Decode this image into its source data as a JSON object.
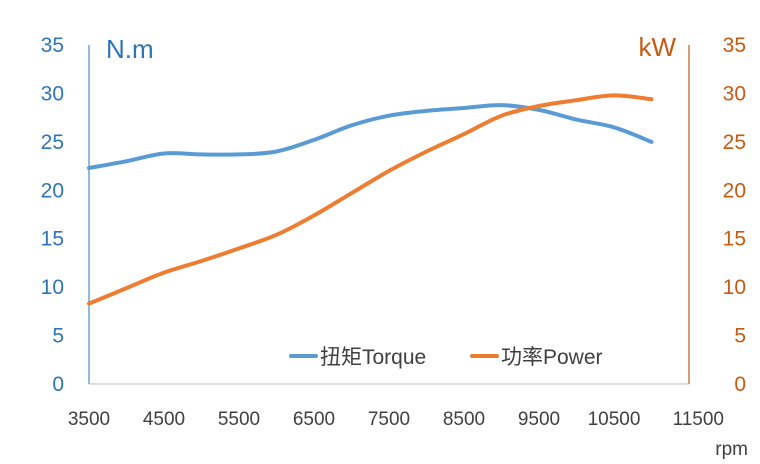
{
  "chart_data": {
    "type": "line",
    "x_unit": "rpm",
    "x_ticks": [
      3500,
      4500,
      5500,
      6500,
      7500,
      8500,
      9500,
      10500,
      11500
    ],
    "xlim": [
      3500,
      11500
    ],
    "y_left": {
      "unit": "N.m",
      "ylim": [
        0,
        35
      ],
      "ticks": [
        0,
        5,
        10,
        15,
        20,
        25,
        30,
        35
      ],
      "color": "#2e75b6"
    },
    "y_right": {
      "unit": "kW",
      "ylim": [
        0,
        35
      ],
      "ticks": [
        0,
        5,
        10,
        15,
        20,
        25,
        30,
        35
      ],
      "color": "#c55a11"
    },
    "grid": false,
    "legend_position": "bottom-right",
    "series": [
      {
        "name": "扭矩Torque",
        "axis": "left",
        "color": "#5b9bd5",
        "points": [
          [
            3500,
            22.3
          ],
          [
            4000,
            23.0
          ],
          [
            4500,
            23.8
          ],
          [
            5000,
            23.7
          ],
          [
            5500,
            23.7
          ],
          [
            6000,
            24.0
          ],
          [
            6500,
            25.2
          ],
          [
            7000,
            26.7
          ],
          [
            7500,
            27.7
          ],
          [
            8000,
            28.2
          ],
          [
            8500,
            28.5
          ],
          [
            9000,
            28.8
          ],
          [
            9500,
            28.3
          ],
          [
            10000,
            27.3
          ],
          [
            10500,
            26.5
          ],
          [
            11000,
            25.0
          ]
        ]
      },
      {
        "name": "功率Power",
        "axis": "right",
        "color": "#ed7d31",
        "points": [
          [
            3500,
            8.3
          ],
          [
            4000,
            9.9
          ],
          [
            4500,
            11.5
          ],
          [
            5000,
            12.7
          ],
          [
            5500,
            14.0
          ],
          [
            6000,
            15.4
          ],
          [
            6500,
            17.4
          ],
          [
            7000,
            19.7
          ],
          [
            7500,
            22.0
          ],
          [
            8000,
            24.0
          ],
          [
            8500,
            25.8
          ],
          [
            9000,
            27.7
          ],
          [
            9500,
            28.7
          ],
          [
            10000,
            29.3
          ],
          [
            10500,
            29.8
          ],
          [
            11000,
            29.4
          ]
        ]
      }
    ]
  }
}
